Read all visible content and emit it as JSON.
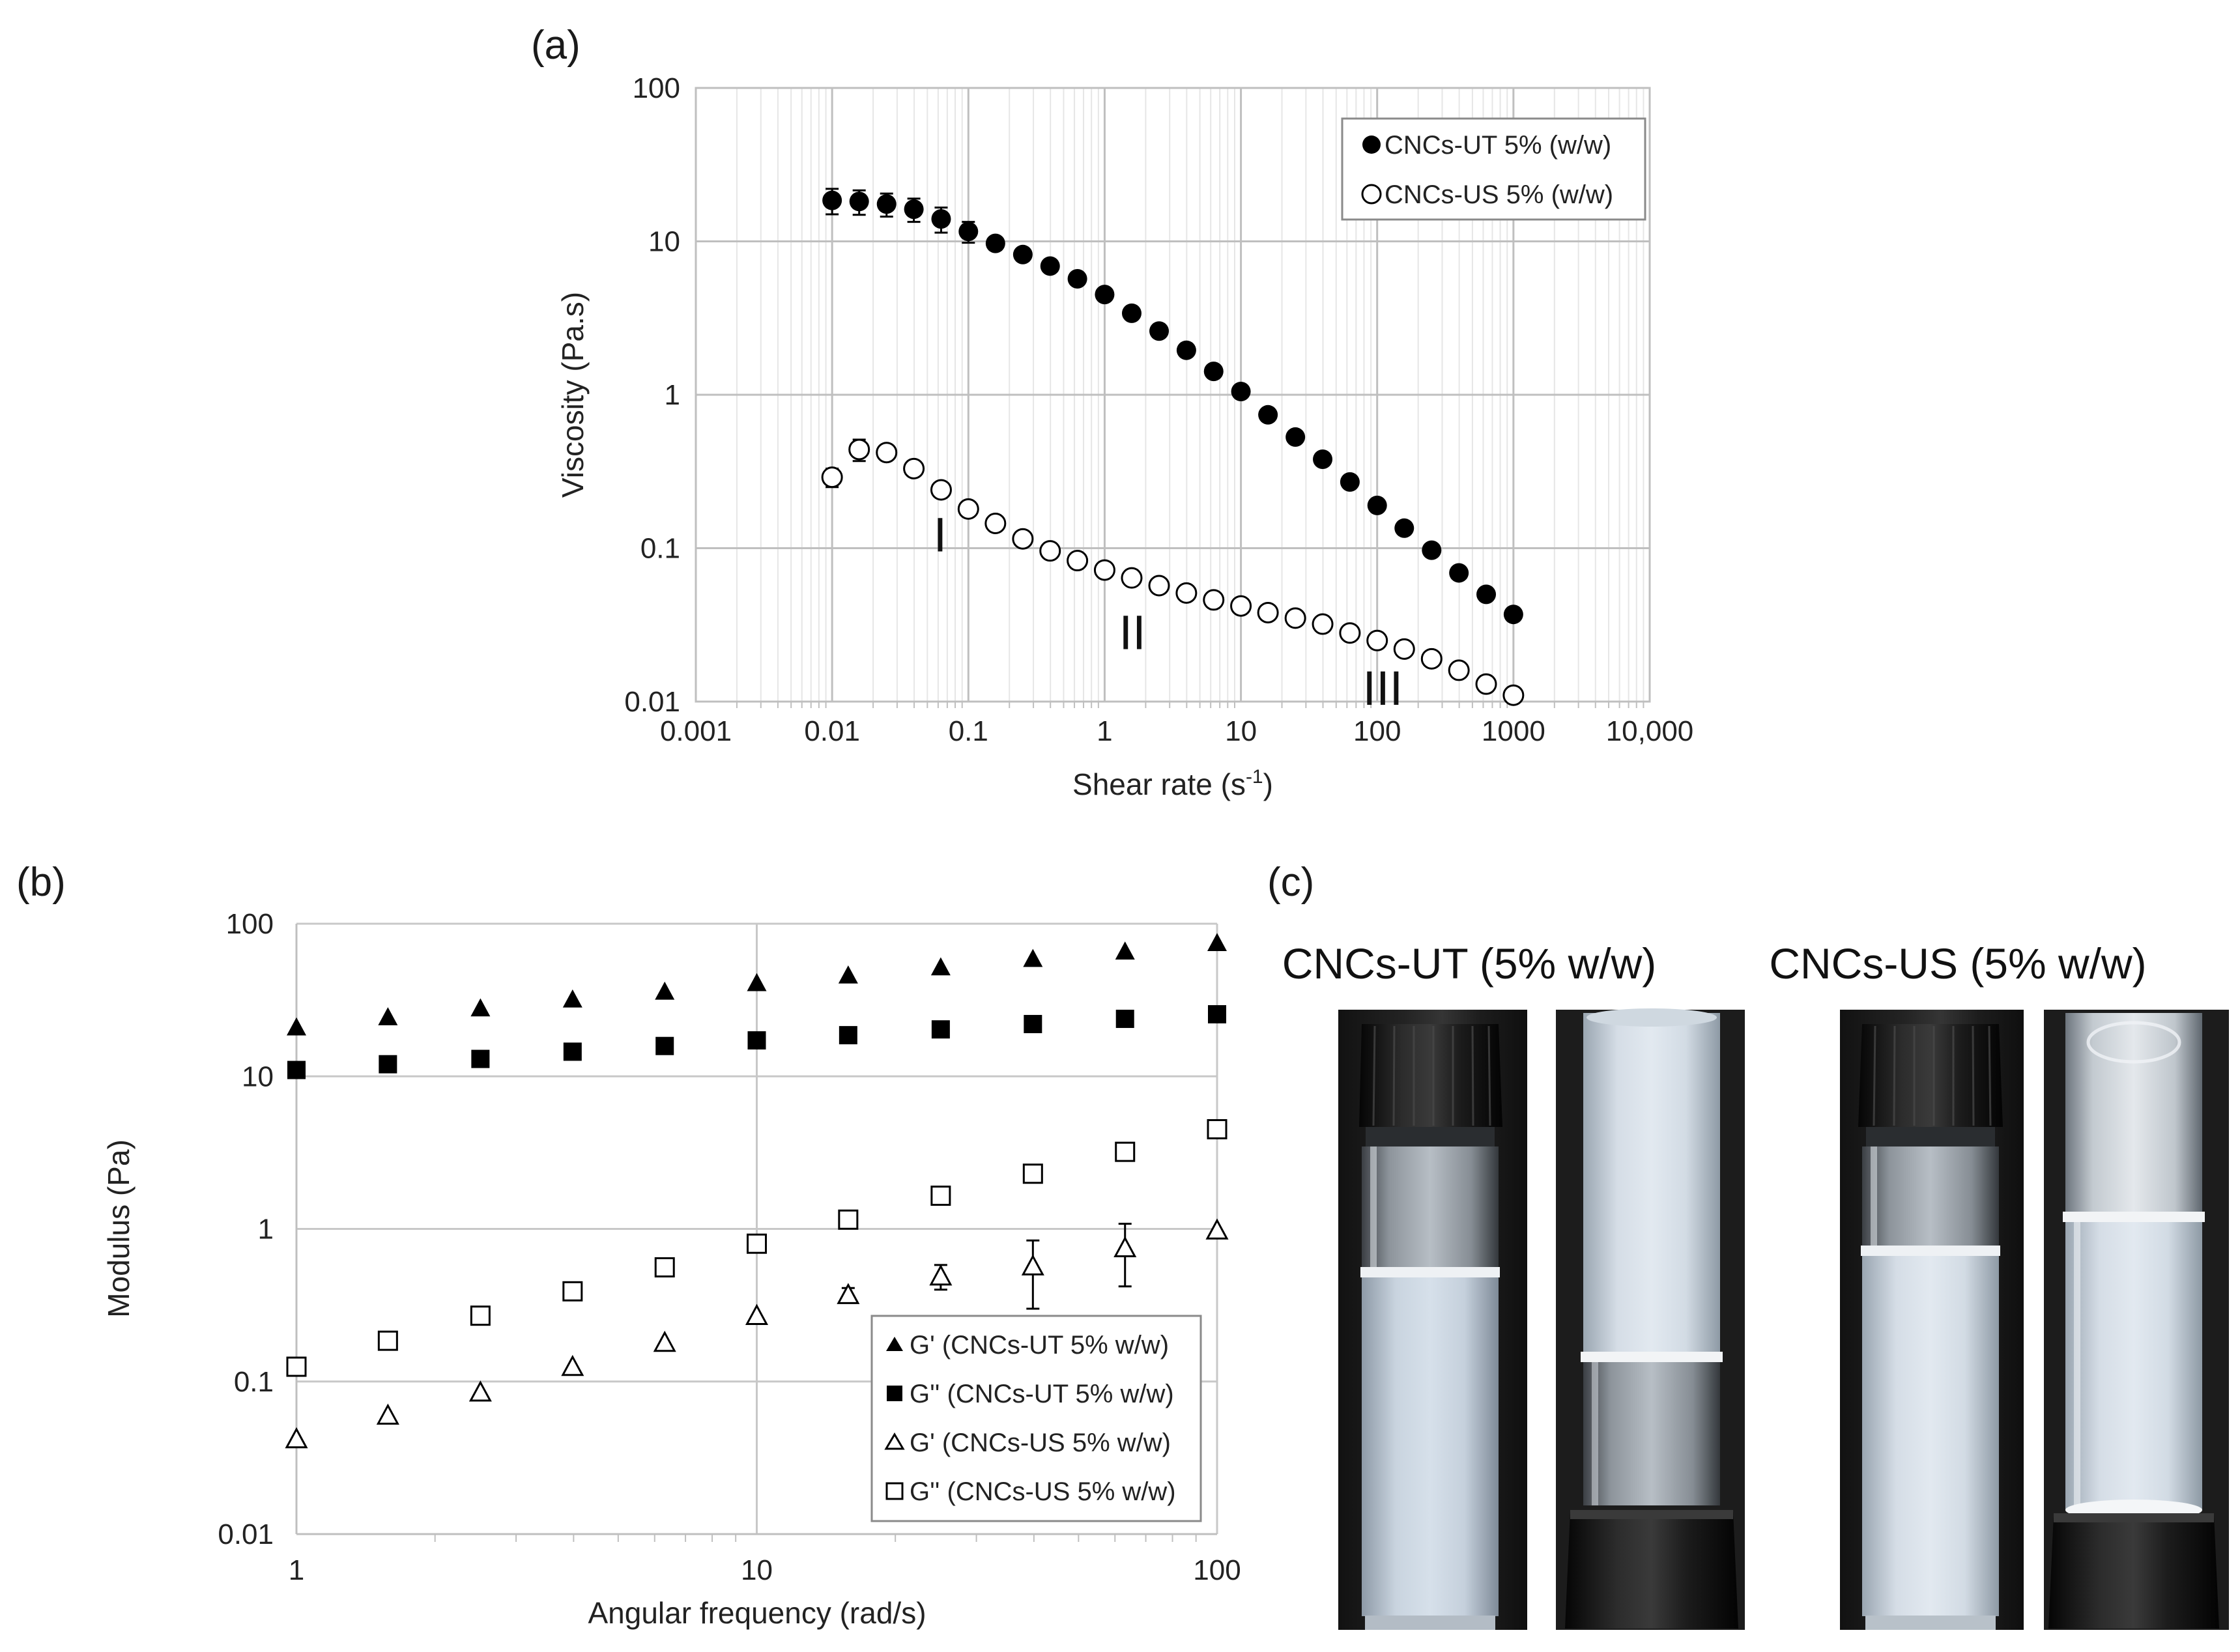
{
  "panels": {
    "a": "(a)",
    "b": "(b)",
    "c": "(c)"
  },
  "chart_data": [
    {
      "id": "a",
      "type": "scatter",
      "xscale": "log",
      "yscale": "log",
      "xlim": [
        0.001,
        10000
      ],
      "ylim": [
        0.01,
        100
      ],
      "xticks": [
        "0.001",
        "0.01",
        "0.1",
        "1",
        "10",
        "100",
        "1000",
        "10,000"
      ],
      "yticks": [
        "0.01",
        "0.1",
        "1",
        "10",
        "100"
      ],
      "xlabel": "Shear rate (s",
      "xlabel_sup": "-1",
      "xlabel_end": ")",
      "ylabel": "Viscosity (Pa.s)",
      "legend_position": "top-right",
      "annotations": [
        {
          "text": "I",
          "x": 0.062,
          "y": 0.095
        },
        {
          "text": "II",
          "x": 1.6,
          "y": 0.022
        },
        {
          "text": "III",
          "x": 110,
          "y": 0.0095
        }
      ],
      "series": [
        {
          "name": "CNCs-UT 5% (w/w)",
          "marker": "circle-filled",
          "x": [
            0.01,
            0.0158,
            0.0251,
            0.0398,
            0.0631,
            0.1,
            0.158,
            0.251,
            0.398,
            0.631,
            1,
            1.58,
            2.51,
            3.98,
            6.31,
            10,
            15.8,
            25.1,
            39.8,
            63.1,
            100,
            158,
            251,
            398,
            631,
            1000
          ],
          "y": [
            18.5,
            18.2,
            17.5,
            16.2,
            14.0,
            11.6,
            9.7,
            8.2,
            6.9,
            5.7,
            4.5,
            3.4,
            2.6,
            1.95,
            1.42,
            1.05,
            0.74,
            0.53,
            0.38,
            0.27,
            0.19,
            0.135,
            0.097,
            0.069,
            0.05,
            0.037
          ],
          "err": [
            3.5,
            3.3,
            3.0,
            2.8,
            2.6,
            1.8,
            0.9,
            0,
            0,
            0,
            0,
            0,
            0,
            0,
            0,
            0,
            0,
            0,
            0,
            0,
            0,
            0,
            0,
            0,
            0,
            0
          ]
        },
        {
          "name": "CNCs-US 5% (w/w)",
          "marker": "circle-open",
          "x": [
            0.01,
            0.0158,
            0.0251,
            0.0398,
            0.0631,
            0.1,
            0.158,
            0.251,
            0.398,
            0.631,
            1,
            1.58,
            2.51,
            3.98,
            6.31,
            10,
            15.8,
            25.1,
            39.8,
            63.1,
            100,
            158,
            251,
            398,
            631,
            1000
          ],
          "y": [
            0.29,
            0.44,
            0.42,
            0.33,
            0.24,
            0.18,
            0.145,
            0.115,
            0.096,
            0.083,
            0.072,
            0.064,
            0.057,
            0.051,
            0.046,
            0.042,
            0.038,
            0.035,
            0.032,
            0.028,
            0.025,
            0.022,
            0.019,
            0.016,
            0.013,
            0.011
          ],
          "err": [
            0.04,
            0.07,
            0.04,
            0.02,
            0,
            0,
            0,
            0,
            0,
            0,
            0,
            0,
            0,
            0,
            0,
            0,
            0,
            0,
            0,
            0,
            0,
            0,
            0,
            0,
            0,
            0
          ]
        }
      ]
    },
    {
      "id": "b",
      "type": "scatter",
      "xscale": "log",
      "yscale": "log",
      "xlim": [
        1,
        100
      ],
      "ylim": [
        0.01,
        100
      ],
      "xticks": [
        "1",
        "10",
        "100"
      ],
      "yticks": [
        "0.01",
        "0.1",
        "1",
        "10",
        "100"
      ],
      "xlabel": "Angular frequency (rad/s)",
      "ylabel": "Modulus (Pa)",
      "legend_position": "bottom-right",
      "series": [
        {
          "name": "G' (CNCs-UT 5% w/w)",
          "marker": "triangle-filled",
          "x": [
            1,
            1.58,
            2.51,
            3.98,
            6.31,
            10,
            15.8,
            25.1,
            39.8,
            63.1,
            100
          ],
          "y": [
            21,
            24.5,
            28,
            32,
            36,
            41,
            46,
            52,
            59,
            66,
            75
          ],
          "err": [
            0,
            0,
            0,
            0,
            0,
            0,
            0,
            0,
            0,
            0,
            0
          ]
        },
        {
          "name": "G'' (CNCs-UT 5% w/w)",
          "marker": "square-filled",
          "x": [
            1,
            1.58,
            2.51,
            3.98,
            6.31,
            10,
            15.8,
            25.1,
            39.8,
            63.1,
            100
          ],
          "y": [
            11,
            12,
            13,
            14.5,
            15.8,
            17.2,
            18.6,
            20.3,
            22,
            23.8,
            25.5
          ],
          "err": [
            0,
            0,
            0,
            0,
            0,
            0,
            0,
            0,
            0,
            0,
            0
          ]
        },
        {
          "name": "G' (CNCs-US 5% w/w)",
          "marker": "triangle-open",
          "x": [
            1,
            1.58,
            2.51,
            3.98,
            6.31,
            10,
            15.8,
            25.1,
            39.8,
            63.1,
            100
          ],
          "y": [
            0.042,
            0.06,
            0.085,
            0.125,
            0.18,
            0.27,
            0.37,
            0.49,
            0.57,
            0.75,
            0.98
          ],
          "err": [
            0,
            0,
            0,
            0,
            0,
            0,
            0.04,
            0.09,
            0.27,
            0.33,
            0
          ]
        },
        {
          "name": "G'' (CNCs-US 5% w/w)",
          "marker": "square-open",
          "x": [
            1,
            1.58,
            2.51,
            3.98,
            6.31,
            10,
            15.8,
            25.1,
            39.8,
            63.1,
            100
          ],
          "y": [
            0.125,
            0.185,
            0.27,
            0.39,
            0.56,
            0.8,
            1.15,
            1.65,
            2.3,
            3.2,
            4.5
          ],
          "err": [
            0,
            0,
            0,
            0,
            0,
            0,
            0,
            0,
            0,
            0,
            0
          ]
        }
      ]
    }
  ],
  "photos": {
    "ut_title": "CNCs-UT (5% w/w)",
    "us_title": "CNCs-US (5% w/w)"
  }
}
